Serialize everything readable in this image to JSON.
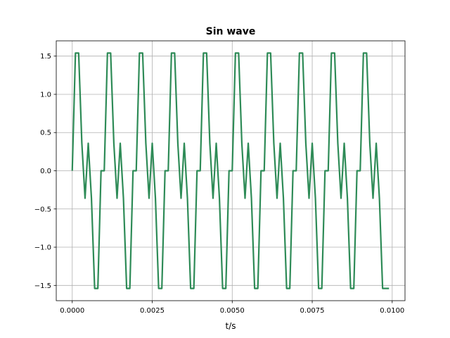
{
  "chart_data": {
    "type": "line",
    "title": "Sin wave",
    "xlabel": "t/s",
    "ylabel": "",
    "xlim": [
      -0.0005,
      0.0104
    ],
    "ylim": [
      -1.7,
      1.7
    ],
    "grid": true,
    "xticks": [
      "0.0000",
      "0.0025",
      "0.0050",
      "0.0075",
      "0.0100"
    ],
    "yticks": [
      "−1.5",
      "−1.0",
      "−0.5",
      "0.0",
      "0.5",
      "1.0",
      "1.5"
    ],
    "series": [
      {
        "color": "#2e8b57",
        "x": [
          0.0,
          0.0001,
          0.0002,
          0.0003,
          0.0004,
          0.0005,
          0.0006,
          0.0007,
          0.0008,
          0.0009,
          0.001,
          0.0011,
          0.0012,
          0.0013,
          0.0014,
          0.0015,
          0.0016,
          0.0017,
          0.0018,
          0.0019,
          0.002,
          0.0021,
          0.0022,
          0.0023,
          0.0024,
          0.0025,
          0.0026,
          0.0027,
          0.0028,
          0.0029,
          0.003,
          0.0031,
          0.0032,
          0.0033,
          0.0034,
          0.0035,
          0.0036,
          0.0037,
          0.0038,
          0.0039,
          0.004,
          0.0041,
          0.0042,
          0.0043,
          0.0044,
          0.0045,
          0.0046,
          0.0047,
          0.0048,
          0.0049,
          0.005,
          0.0051,
          0.0052,
          0.0053,
          0.0054,
          0.0055,
          0.0056,
          0.0057,
          0.0058,
          0.0059,
          0.006,
          0.0061,
          0.0062,
          0.0063,
          0.0064,
          0.0065,
          0.0066,
          0.0067,
          0.0068,
          0.0069,
          0.007,
          0.0071,
          0.0072,
          0.0073,
          0.0074,
          0.0075,
          0.0076,
          0.0077,
          0.0078,
          0.0079,
          0.008,
          0.0081,
          0.0082,
          0.0083,
          0.0084,
          0.0085,
          0.0086,
          0.0087,
          0.0088,
          0.0089,
          0.009,
          0.0091,
          0.0092,
          0.0093,
          0.0094,
          0.0095,
          0.0096,
          0.0097,
          0.0098,
          0.0099
        ],
        "y": [
          0.0,
          1.54,
          1.54,
          0.36,
          -0.36,
          0.36,
          -0.36,
          -1.54,
          -1.54,
          0.0,
          0.0,
          1.54,
          1.54,
          0.36,
          -0.36,
          0.36,
          -0.36,
          -1.54,
          -1.54,
          0.0,
          0.0,
          1.54,
          1.54,
          0.36,
          -0.36,
          0.36,
          -0.36,
          -1.54,
          -1.54,
          0.0,
          0.0,
          1.54,
          1.54,
          0.36,
          -0.36,
          0.36,
          -0.36,
          -1.54,
          -1.54,
          0.0,
          0.0,
          1.54,
          1.54,
          0.36,
          -0.36,
          0.36,
          -0.36,
          -1.54,
          -1.54,
          0.0,
          0.0,
          1.54,
          1.54,
          0.36,
          -0.36,
          0.36,
          -0.36,
          -1.54,
          -1.54,
          0.0,
          0.0,
          1.54,
          1.54,
          0.36,
          -0.36,
          0.36,
          -0.36,
          -1.54,
          -1.54,
          0.0,
          0.0,
          1.54,
          1.54,
          0.36,
          -0.36,
          0.36,
          -0.36,
          -1.54,
          -1.54,
          0.0,
          0.0,
          1.54,
          1.54,
          0.36,
          -0.36,
          0.36,
          -0.36,
          -1.54,
          -1.54,
          0.0,
          0.0,
          1.54,
          1.54,
          0.36,
          -0.36,
          0.36,
          -0.36,
          -1.54,
          -1.54,
          -1.54
        ]
      }
    ]
  }
}
